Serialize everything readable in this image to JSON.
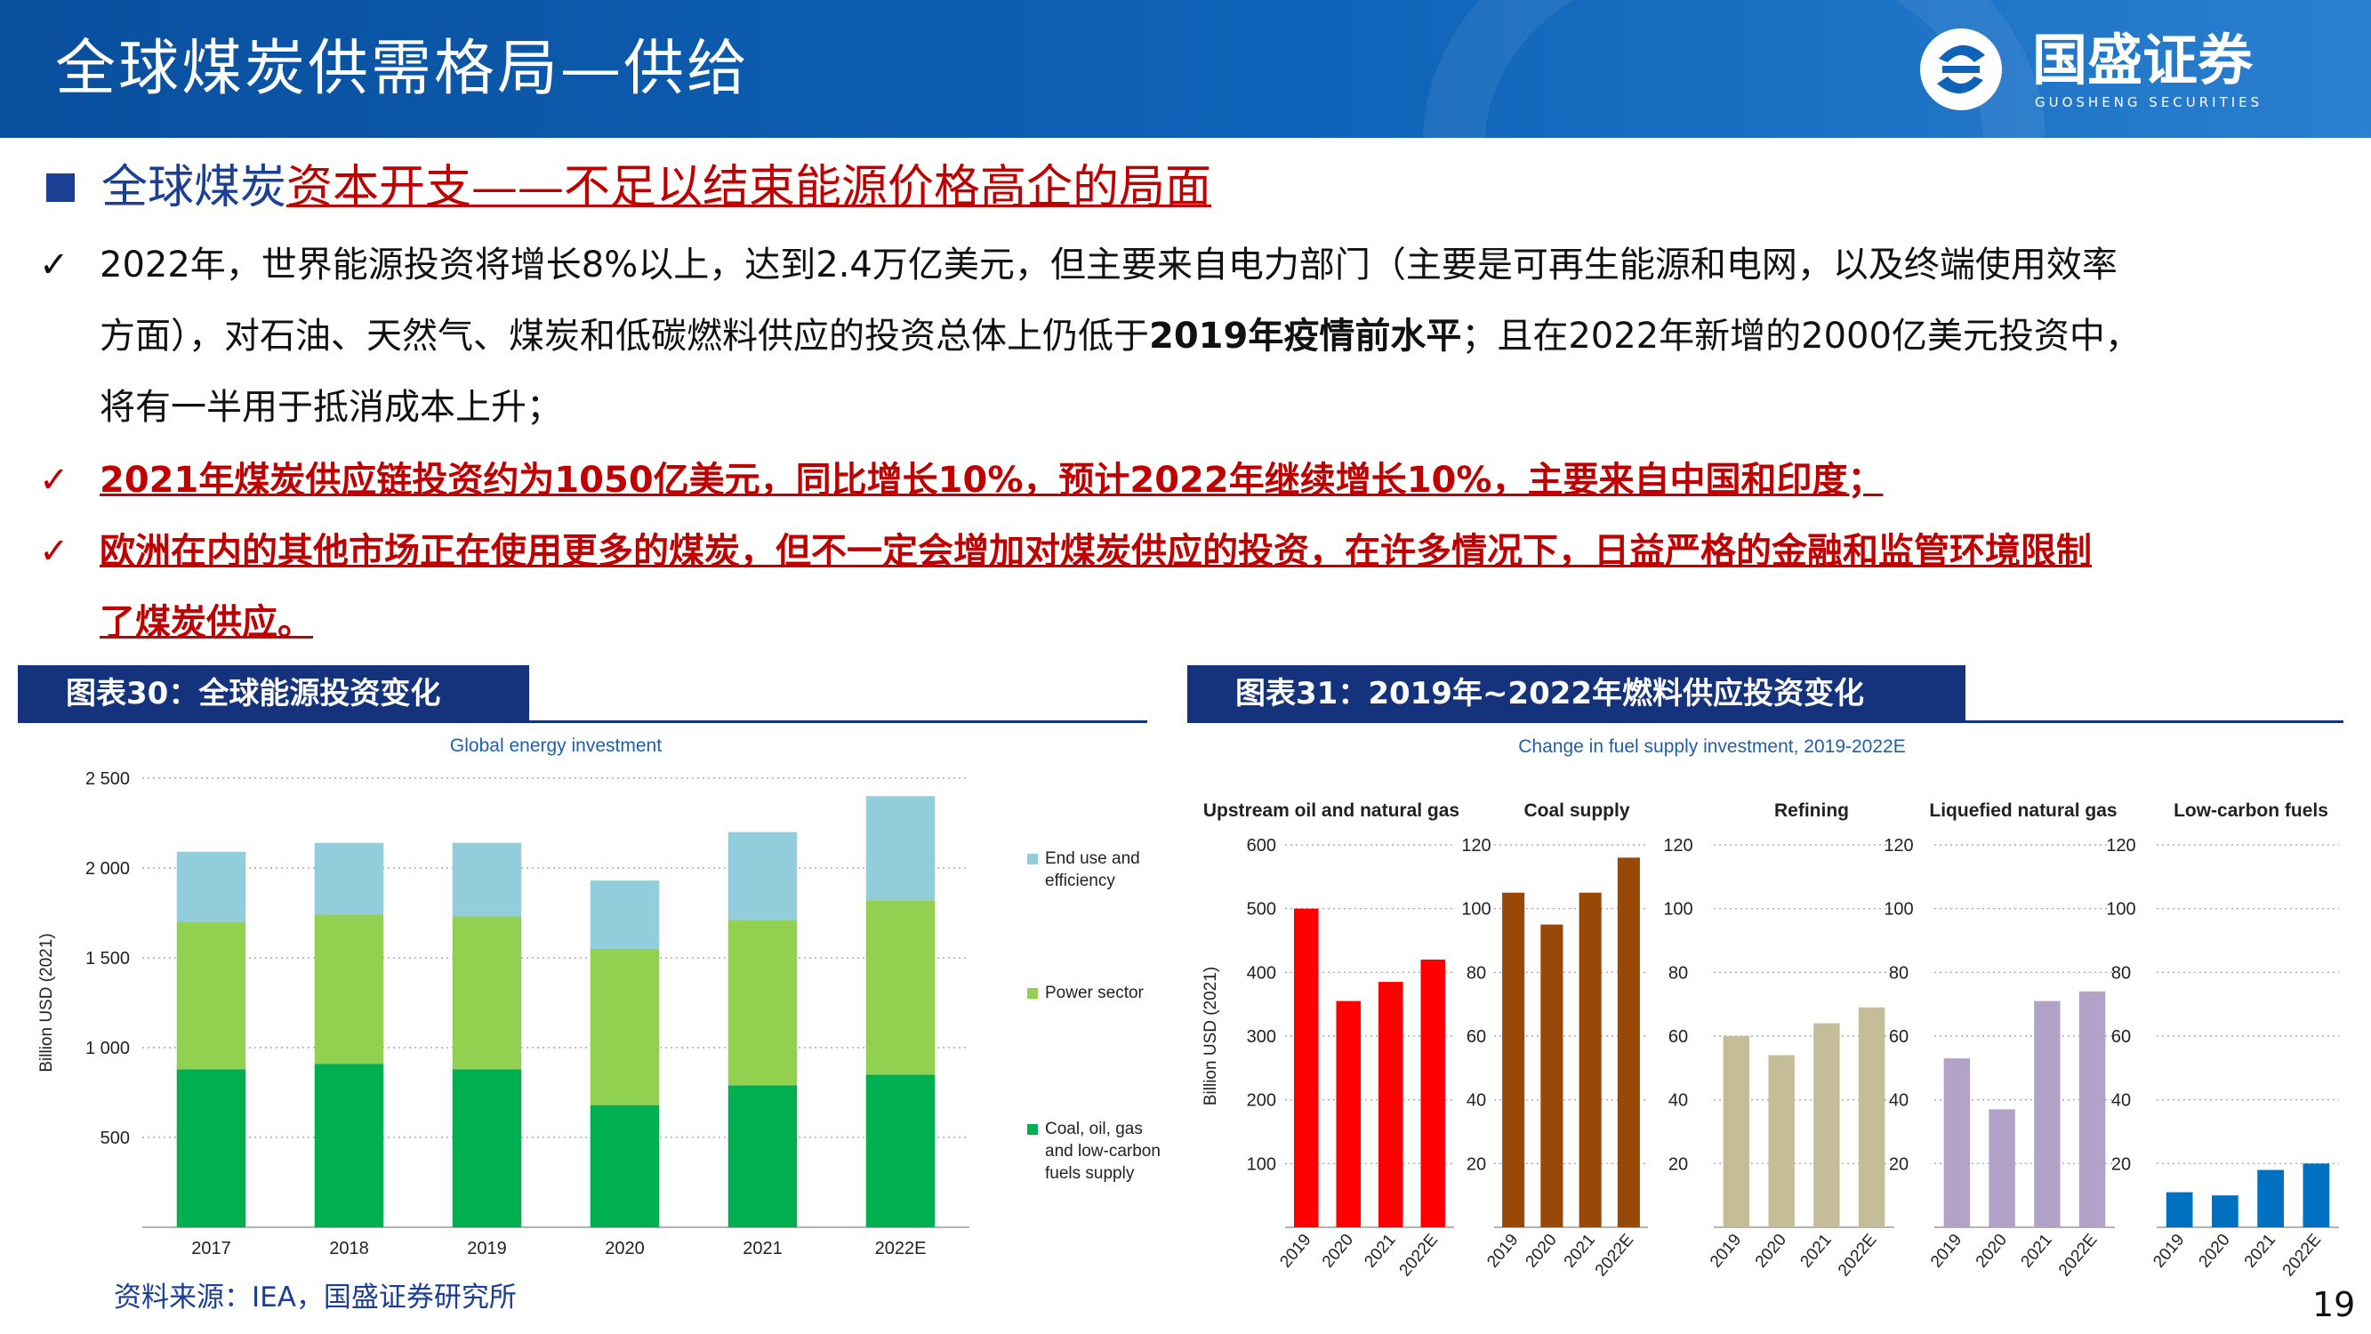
{
  "header": {
    "title": "全球煤炭供需格局—供给",
    "logo_text": "国盛证券",
    "logo_sub": "GUOSHENG SECURITIES"
  },
  "section": {
    "title_part1": "全球煤炭",
    "title_part2": "资本开支",
    "title_part3": "——不足以结束能源价格高企的局面"
  },
  "bullets": {
    "b1_line1": "2022年，世界能源投资将增长8%以上，达到2.4万亿美元，但主要来自电力部门（主要是可再生能源和电网，以及终端使用效率",
    "b1_line2_a": "方面），对石油、天然气、煤炭和低碳燃料供应的投资总体上仍低于",
    "b1_line2_b": "2019年疫情前水平",
    "b1_line2_c": "；且在2022年新增的2000亿美元投资中，",
    "b1_line3": "将有一半用于抵消成本上升；",
    "b2": "2021年煤炭供应链投资约为1050亿美元，同比增长10%，预计2022年继续增长10%，主要来自中国和印度；",
    "b3_line1": "欧洲在内的其他市场正在使用更多的煤炭，但不一定会增加对煤炭供应的投资，在许多情况下，日益严格的金融和监管环境限制",
    "b3_line2": "了煤炭供应。",
    "check_mark": "✓"
  },
  "figure30": {
    "label": "图表30：全球能源投资变化"
  },
  "figure31": {
    "label": "图表31：2019年~2022年燃料供应投资变化"
  },
  "footer": {
    "source": "资料来源：IEA，国盛证券研究所",
    "page": "19"
  },
  "colors": {
    "coal": "#00b050",
    "power": "#92d050",
    "enduse": "#92cddc",
    "upstream": "#ff0000",
    "coalsupply": "#984807",
    "refining": "#c4bd97",
    "lng": "#b3a2c7",
    "lowcarbon": "#0070c0"
  },
  "chart_data": [
    {
      "type": "bar",
      "stacked": true,
      "title": "Global energy investment",
      "ylabel": "Billion USD (2021)",
      "categories": [
        "2017",
        "2018",
        "2019",
        "2020",
        "2021",
        "2022E"
      ],
      "ylim": [
        0,
        2500
      ],
      "yticks": [
        500,
        1000,
        1500,
        2000,
        2500
      ],
      "ytick_labels": [
        "500",
        "1 000",
        "1 500",
        "2 000",
        "2 500"
      ],
      "grid": true,
      "legend_position": "right",
      "series": [
        {
          "name": "Coal, oil, gas and low-carbon fuels supply",
          "label_lines": [
            "Coal, oil, gas",
            "and low-carbon",
            "fuels supply"
          ],
          "color": "#00b050",
          "values": [
            880,
            910,
            880,
            680,
            790,
            850
          ]
        },
        {
          "name": "Power sector",
          "label_lines": [
            "Power sector"
          ],
          "color": "#92d050",
          "values": [
            820,
            830,
            850,
            870,
            920,
            970
          ]
        },
        {
          "name": "End use and efficiency",
          "label_lines": [
            "End use and",
            "efficiency"
          ],
          "color": "#92cddc",
          "values": [
            390,
            400,
            410,
            380,
            490,
            580
          ]
        }
      ]
    },
    {
      "type": "bar",
      "title": "Change in fuel supply investment, 2019-2022E",
      "ylabel": "Billion USD (2021)",
      "grid": true,
      "panels": [
        {
          "name": "Upstream oil and natural gas",
          "categories": [
            "2019",
            "2020",
            "2021",
            "2022E"
          ],
          "values": [
            500,
            355,
            385,
            420
          ],
          "ylim": [
            0,
            600
          ],
          "yticks": [
            100,
            200,
            300,
            400,
            500,
            600
          ],
          "color": "#ff0000"
        },
        {
          "name": "Coal supply",
          "categories": [
            "2019",
            "2020",
            "2021",
            "2022E"
          ],
          "values": [
            105,
            95,
            105,
            116
          ],
          "ylim": [
            0,
            120
          ],
          "yticks": [
            20,
            40,
            60,
            80,
            100,
            120
          ],
          "color": "#984807"
        },
        {
          "name": "Refining",
          "categories": [
            "2019",
            "2020",
            "2021",
            "2022E"
          ],
          "values": [
            60,
            54,
            64,
            69
          ],
          "ylim": [
            0,
            120
          ],
          "yticks": [
            20,
            40,
            60,
            80,
            100,
            120
          ],
          "color": "#c4bd97"
        },
        {
          "name": "Liquefied natural gas",
          "categories": [
            "2019",
            "2020",
            "2021",
            "2022E"
          ],
          "values": [
            53,
            37,
            71,
            74
          ],
          "ylim": [
            0,
            120
          ],
          "yticks": [
            20,
            40,
            60,
            80,
            100,
            120
          ],
          "color": "#b3a2c7"
        },
        {
          "name": "Low-carbon fuels",
          "categories": [
            "2019",
            "2020",
            "2021",
            "2022E"
          ],
          "values": [
            11,
            10,
            18,
            20
          ],
          "ylim": [
            0,
            120
          ],
          "yticks": [
            20,
            40,
            60,
            80,
            100,
            120
          ],
          "color": "#0070c0"
        }
      ]
    }
  ]
}
